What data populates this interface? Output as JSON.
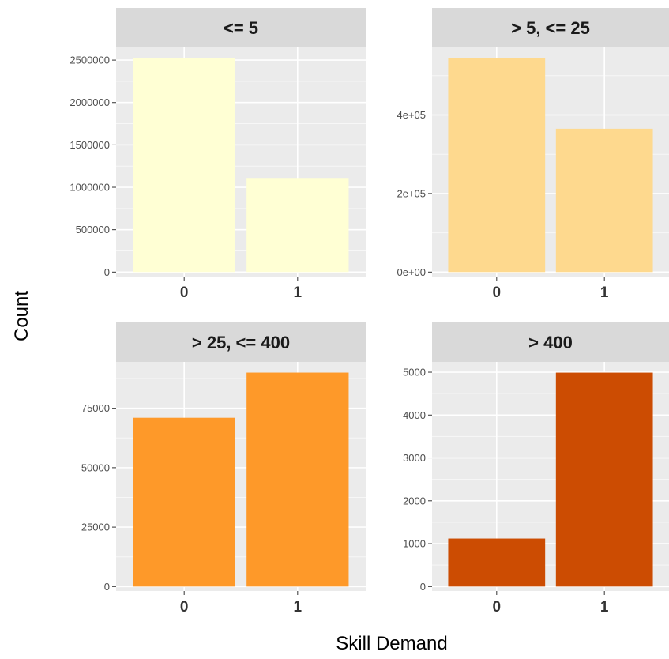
{
  "chart_data": {
    "type": "bar",
    "xlabel": "Skill Demand",
    "ylabel": "Count",
    "layout": "facet_wrap 2x2, free y scales",
    "grid": true,
    "legend": "none",
    "panels": [
      {
        "title": "<= 5",
        "color": "#FFFFD4",
        "categories": [
          "0",
          "1"
        ],
        "values": [
          2520000,
          1110000
        ],
        "ylim": [
          0,
          2650000
        ],
        "yticks": [
          0,
          500000,
          1000000,
          1500000,
          2000000,
          2500000
        ],
        "ytick_labels": [
          "0",
          "500000",
          "1000000",
          "1500000",
          "2000000",
          "2500000"
        ]
      },
      {
        "title": "> 5, <= 25",
        "color": "#FED98E",
        "categories": [
          "0",
          "1"
        ],
        "values": [
          545000,
          365000
        ],
        "ylim": [
          0,
          572000
        ],
        "yticks": [
          0,
          200000,
          400000
        ],
        "ytick_labels": [
          "0e+00",
          "2e+05",
          "4e+05"
        ]
      },
      {
        "title": "> 25, <= 400",
        "color": "#FE9929",
        "categories": [
          "0",
          "1"
        ],
        "values": [
          71000,
          90000
        ],
        "ylim": [
          0,
          94500
        ],
        "yticks": [
          0,
          25000,
          50000,
          75000
        ],
        "ytick_labels": [
          "0",
          "25000",
          "50000",
          "75000"
        ]
      },
      {
        "title": "> 400",
        "color": "#CC4C02",
        "categories": [
          "0",
          "1"
        ],
        "values": [
          1120,
          4990
        ],
        "ylim": [
          0,
          5240
        ],
        "yticks": [
          0,
          1000,
          2000,
          3000,
          4000,
          5000
        ],
        "ytick_labels": [
          "0",
          "1000",
          "2000",
          "3000",
          "4000",
          "5000"
        ]
      }
    ]
  }
}
